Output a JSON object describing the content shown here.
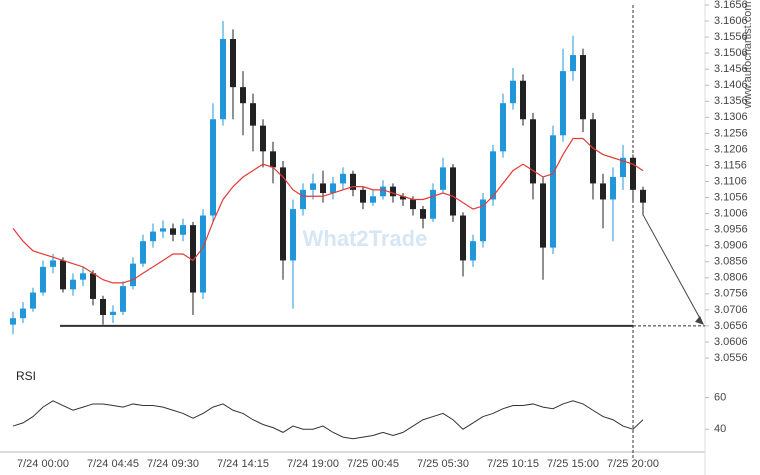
{
  "watermark": "What2Trade",
  "source": "www.autochartist.com",
  "chart_data": [
    {
      "type": "candlestick",
      "categories": [
        null,
        null,
        null,
        "7/24 00:00",
        null,
        null,
        null,
        null,
        null,
        null,
        "7/24 04:45",
        null,
        null,
        null,
        null,
        null,
        "7/24 09:30",
        null,
        null,
        null,
        null,
        null,
        null,
        "7/24 14:15",
        null,
        null,
        null,
        null,
        null,
        null,
        "7/24 19:00",
        null,
        null,
        null,
        null,
        null,
        "7/25 00:45",
        null,
        null,
        null,
        null,
        null,
        null,
        "7/25 05:30",
        null,
        null,
        null,
        null,
        null,
        null,
        "7/25 10:15",
        null,
        null,
        null,
        null,
        null,
        "7/25 15:00",
        null,
        null,
        null,
        null,
        null,
        "7/25 20:00",
        null
      ],
      "open": [
        3.066,
        3.068,
        3.071,
        3.076,
        3.084,
        3.086,
        3.077,
        3.08,
        3.082,
        3.074,
        3.069,
        3.07,
        3.078,
        3.085,
        3.092,
        3.095,
        3.096,
        3.094,
        3.097,
        3.076,
        3.1,
        3.13,
        3.155,
        3.14,
        3.135,
        3.128,
        3.12,
        3.115,
        3.086,
        3.102,
        3.108,
        3.11,
        3.107,
        3.11,
        3.113,
        3.108,
        3.104,
        3.106,
        3.109,
        3.106,
        3.105,
        3.102,
        3.099,
        3.108,
        3.115,
        3.1,
        3.086,
        3.092,
        3.105,
        3.12,
        3.135,
        3.142,
        3.13,
        3.11,
        3.09,
        3.125,
        3.145,
        3.15,
        3.13,
        3.11,
        3.105,
        3.112,
        3.118,
        3.108
      ],
      "high": [
        3.07,
        3.073,
        3.0775,
        3.086,
        3.088,
        3.087,
        3.082,
        3.084,
        3.083,
        3.075,
        3.072,
        3.0795,
        3.087,
        3.094,
        3.0975,
        3.0985,
        3.0975,
        3.099,
        3.098,
        3.102,
        3.135,
        3.1606,
        3.158,
        3.145,
        3.138,
        3.13,
        3.123,
        3.117,
        3.105,
        3.11,
        3.113,
        3.114,
        3.112,
        3.115,
        3.114,
        3.109,
        3.108,
        3.111,
        3.11,
        3.107,
        3.106,
        3.103,
        3.11,
        3.118,
        3.116,
        3.101,
        3.094,
        3.107,
        3.122,
        3.138,
        3.146,
        3.144,
        3.132,
        3.112,
        3.128,
        3.152,
        3.156,
        3.152,
        3.132,
        3.113,
        3.115,
        3.122,
        3.119,
        3.109
      ],
      "low": [
        3.063,
        3.0665,
        3.07,
        3.075,
        3.082,
        3.076,
        3.075,
        3.078,
        3.072,
        3.066,
        3.0665,
        3.069,
        3.077,
        3.084,
        3.09,
        3.093,
        3.092,
        3.092,
        3.069,
        3.074,
        3.098,
        3.128,
        3.13,
        3.125,
        3.12,
        3.115,
        3.11,
        3.08,
        3.071,
        3.1,
        3.105,
        3.104,
        3.105,
        3.108,
        3.106,
        3.102,
        3.103,
        3.105,
        3.104,
        3.103,
        3.1,
        3.096,
        3.098,
        3.107,
        3.098,
        3.081,
        3.084,
        3.09,
        3.103,
        3.118,
        3.133,
        3.128,
        3.105,
        3.08,
        3.088,
        3.123,
        3.142,
        3.126,
        3.105,
        3.096,
        3.092,
        3.108,
        3.104,
        3.1
      ],
      "close": [
        3.068,
        3.071,
        3.076,
        3.084,
        3.086,
        3.077,
        3.08,
        3.082,
        3.074,
        3.069,
        3.07,
        3.078,
        3.085,
        3.092,
        3.095,
        3.096,
        3.094,
        3.097,
        3.076,
        3.1,
        3.13,
        3.155,
        3.14,
        3.135,
        3.128,
        3.12,
        3.115,
        3.086,
        3.102,
        3.108,
        3.11,
        3.107,
        3.11,
        3.113,
        3.108,
        3.104,
        3.106,
        3.109,
        3.106,
        3.105,
        3.102,
        3.099,
        3.108,
        3.115,
        3.1,
        3.086,
        3.092,
        3.105,
        3.12,
        3.135,
        3.142,
        3.13,
        3.11,
        3.09,
        3.125,
        3.145,
        3.15,
        3.13,
        3.11,
        3.105,
        3.112,
        3.118,
        3.108,
        3.104
      ],
      "up_color": "#2196d8",
      "down_color": "#222222",
      "moving_average": {
        "color": "#e53935",
        "values": [
          3.096,
          3.092,
          3.089,
          3.088,
          3.087,
          3.086,
          3.085,
          3.084,
          3.082,
          3.08,
          3.079,
          3.079,
          3.08,
          3.082,
          3.084,
          3.086,
          3.088,
          3.088,
          3.086,
          3.09,
          3.098,
          3.105,
          3.109,
          3.112,
          3.114,
          3.116,
          3.115,
          3.112,
          3.108,
          3.106,
          3.106,
          3.106,
          3.107,
          3.108,
          3.109,
          3.109,
          3.108,
          3.108,
          3.107,
          3.106,
          3.105,
          3.105,
          3.106,
          3.107,
          3.106,
          3.104,
          3.102,
          3.103,
          3.106,
          3.11,
          3.114,
          3.116,
          3.114,
          3.112,
          3.113,
          3.119,
          3.124,
          3.124,
          3.121,
          3.119,
          3.118,
          3.117,
          3.116,
          3.114
        ]
      },
      "support": 3.0656,
      "support_color": "#333333",
      "ylim": [
        3.0556,
        3.1656
      ],
      "yticks": [
        3.0556,
        3.0606,
        3.0656,
        3.0706,
        3.0756,
        3.0806,
        3.0856,
        3.0906,
        3.0956,
        3.1006,
        3.1056,
        3.1106,
        3.1156,
        3.1206,
        3.1256,
        3.1306,
        3.1356,
        3.1406,
        3.1456,
        3.1506,
        3.1556,
        3.1606,
        3.1656
      ]
    },
    {
      "type": "line",
      "title": "RSI",
      "color": "#333333",
      "values": [
        42,
        44,
        48,
        54,
        58,
        55,
        52,
        54,
        56,
        56,
        55,
        54,
        56,
        55,
        55,
        54,
        52,
        50,
        47,
        50,
        54,
        56,
        52,
        50,
        46,
        43,
        41,
        38,
        42,
        40,
        40,
        42,
        38,
        35,
        34,
        35,
        36,
        38,
        36,
        38,
        42,
        46,
        48,
        50,
        46,
        40,
        44,
        48,
        50,
        53,
        55,
        55,
        56,
        54,
        53,
        56,
        58,
        56,
        52,
        48,
        46,
        42,
        40,
        46
      ],
      "ylim": [
        30,
        68
      ],
      "yticks": [
        40,
        60
      ]
    }
  ]
}
